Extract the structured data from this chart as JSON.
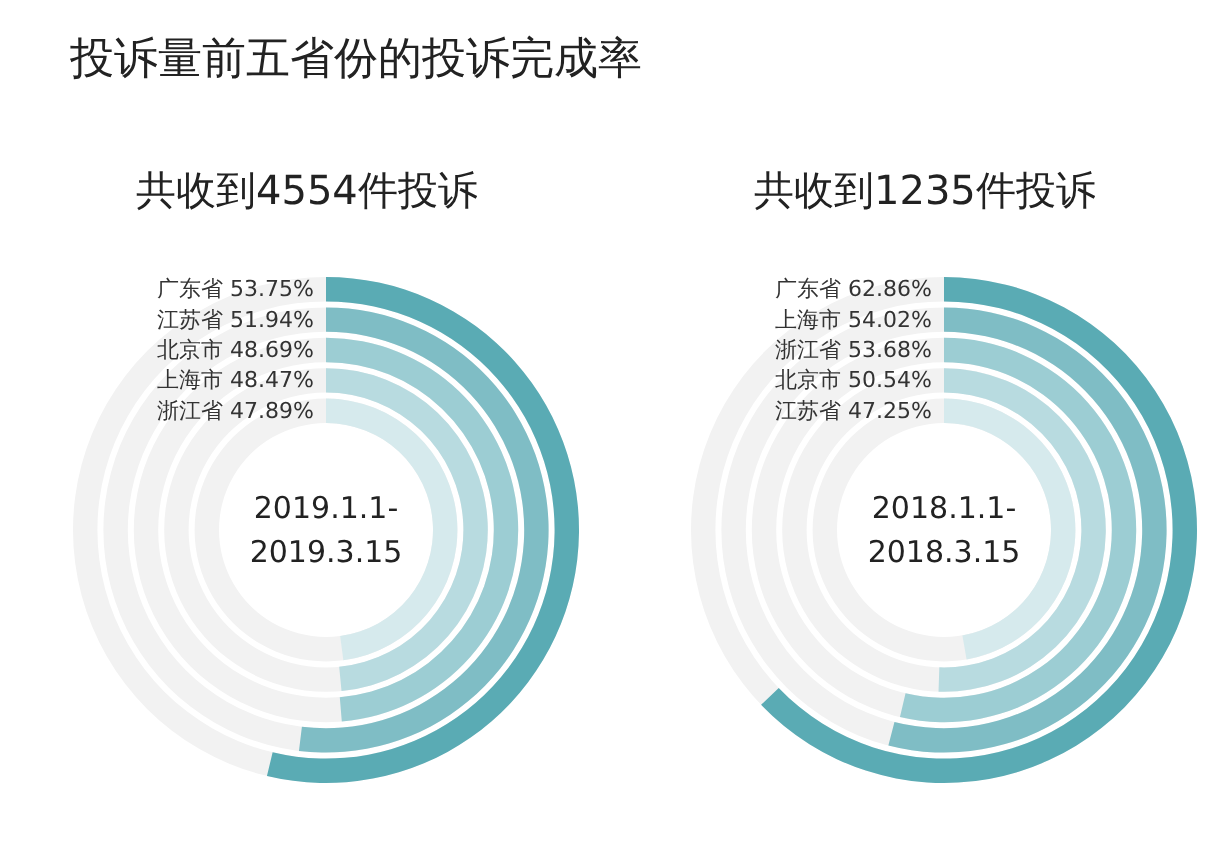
{
  "chart_data": [
    {
      "type": "other",
      "title": "投诉量前五省份的投诉完成率",
      "subtitle": "共收到4554件投诉",
      "annotations": [
        "2019.1.1-\n2019.3.15"
      ],
      "categories": [
        "广东省",
        "江苏省",
        "北京市",
        "上海市",
        "浙江省"
      ],
      "values": [
        53.75,
        51.94,
        48.69,
        48.47,
        47.89
      ],
      "value_labels": [
        "53.75%",
        "51.94%",
        "48.69%",
        "48.47%",
        "47.89%"
      ],
      "colors": [
        "#5aabb4",
        "#7fbdc5",
        "#9ccdd3",
        "#b8dbe0",
        "#d6eaed"
      ]
    },
    {
      "type": "other",
      "subtitle": "共收到1235件投诉",
      "annotations": [
        "2018.1.1-\n2018.3.15"
      ],
      "categories": [
        "广东省",
        "上海市",
        "浙江省",
        "北京市",
        "江苏省"
      ],
      "values": [
        62.86,
        54.02,
        53.68,
        50.54,
        47.25
      ],
      "value_labels": [
        "62.86%",
        "54.02%",
        "53.68%",
        "50.54%",
        "47.25%"
      ],
      "colors": [
        "#5aabb4",
        "#7fbdc5",
        "#9ccdd3",
        "#b8dbe0",
        "#d6eaed"
      ]
    }
  ]
}
